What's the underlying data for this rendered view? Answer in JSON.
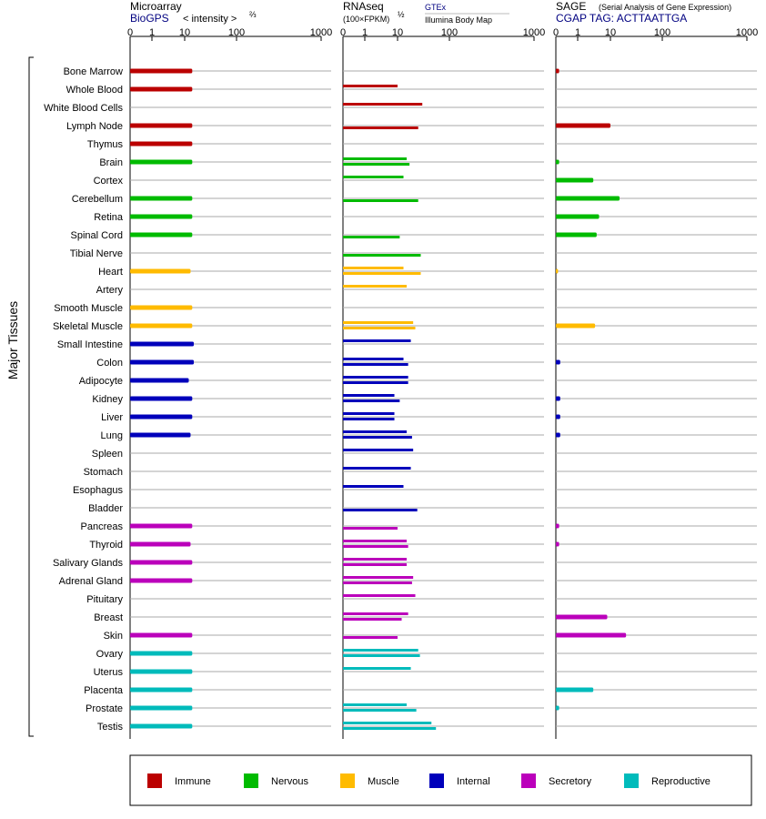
{
  "headers": {
    "microarray_title": "Microarray",
    "microarray_source": "BioGPS",
    "microarray_units": "< intensity >",
    "microarray_exp": "⅔",
    "rnaseq_title": "RNAseq",
    "rnaseq_units": "(100×FPKM)",
    "rnaseq_exp": "½",
    "rnaseq_gtex": "GTEx",
    "rnaseq_ibm": "Illumina Body Map",
    "sage_title": "SAGE",
    "sage_subtitle": "(Serial Analysis of Gene Expression)",
    "sage_tag": "CGAP TAG: ACTTAATTGA"
  },
  "axis_ticks": [
    "0",
    "1",
    "10",
    "100",
    "1000"
  ],
  "y_group_label": "Major Tissues",
  "colors": {
    "Immune": "#bb0000",
    "Nervous": "#00bb00",
    "Muscle": "#ffbb00",
    "Internal": "#0000bb",
    "Secretory": "#bb00bb",
    "Reproductive": "#00bbbb"
  },
  "legend": [
    {
      "label": "Immune",
      "color": "#bb0000"
    },
    {
      "label": "Nervous",
      "color": "#00bb00"
    },
    {
      "label": "Muscle",
      "color": "#ffbb00"
    },
    {
      "label": "Internal",
      "color": "#0000bb"
    },
    {
      "label": "Secretory",
      "color": "#bb00bb"
    },
    {
      "label": "Reproductive",
      "color": "#00bbbb"
    }
  ],
  "chart_data": {
    "type": "bar",
    "scale_note": "three panels share axis ticks 0,1,10,100,1000",
    "categories": [
      "Bone Marrow",
      "Whole Blood",
      "White Blood Cells",
      "Lymph Node",
      "Thymus",
      "Brain",
      "Cortex",
      "Cerebellum",
      "Retina",
      "Spinal Cord",
      "Tibial Nerve",
      "Heart",
      "Artery",
      "Smooth Muscle",
      "Skeletal Muscle",
      "Small Intestine",
      "Colon",
      "Adipocyte",
      "Kidney",
      "Liver",
      "Lung",
      "Spleen",
      "Stomach",
      "Esophagus",
      "Bladder",
      "Pancreas",
      "Thyroid",
      "Salivary Glands",
      "Adrenal Gland",
      "Pituitary",
      "Breast",
      "Skin",
      "Ovary",
      "Uterus",
      "Placenta",
      "Prostate",
      "Testis"
    ],
    "tissue_groups": [
      "Immune",
      "Immune",
      "Immune",
      "Immune",
      "Immune",
      "Nervous",
      "Nervous",
      "Nervous",
      "Nervous",
      "Nervous",
      "Nervous",
      "Muscle",
      "Muscle",
      "Muscle",
      "Muscle",
      "Internal",
      "Internal",
      "Internal",
      "Internal",
      "Internal",
      "Internal",
      "Internal",
      "Internal",
      "Internal",
      "Internal",
      "Secretory",
      "Secretory",
      "Secretory",
      "Secretory",
      "Secretory",
      "Secretory",
      "Secretory",
      "Reproductive",
      "Reproductive",
      "Reproductive",
      "Reproductive",
      "Reproductive"
    ],
    "series": [
      {
        "name": "Microarray",
        "values": [
          14,
          14,
          null,
          14,
          14,
          14,
          null,
          14,
          14,
          14,
          null,
          13,
          null,
          14,
          14,
          15,
          15,
          12,
          14,
          14,
          13,
          null,
          null,
          null,
          null,
          14,
          13,
          14,
          14,
          null,
          null,
          14,
          14,
          14,
          14,
          14,
          14
        ]
      },
      {
        "name": "GTEx",
        "values": [
          null,
          10,
          30,
          null,
          null,
          15,
          13,
          null,
          null,
          null,
          null,
          13,
          15,
          null,
          20,
          18,
          13,
          16,
          8,
          8,
          15,
          20,
          18,
          13,
          null,
          null,
          15,
          15,
          20,
          22,
          16,
          null,
          25,
          18,
          null,
          15,
          45
        ]
      },
      {
        "name": "Illumina Body Map",
        "values": [
          null,
          null,
          null,
          25,
          null,
          17,
          null,
          25,
          null,
          11,
          28,
          28,
          null,
          null,
          22,
          null,
          16,
          16,
          11,
          8,
          19,
          null,
          null,
          null,
          24,
          10,
          16,
          15,
          19,
          null,
          12,
          10,
          27,
          null,
          null,
          23,
          55
        ]
      },
      {
        "name": "SAGE",
        "values": [
          0.15,
          null,
          null,
          10,
          null,
          0.15,
          3,
          15,
          4.5,
          3.8,
          null,
          0.1,
          null,
          null,
          3.4,
          null,
          0.2,
          null,
          0.2,
          0.2,
          0.2,
          null,
          null,
          null,
          null,
          0.15,
          0.15,
          null,
          null,
          null,
          8,
          20,
          null,
          null,
          3,
          0.15,
          null
        ]
      }
    ]
  }
}
